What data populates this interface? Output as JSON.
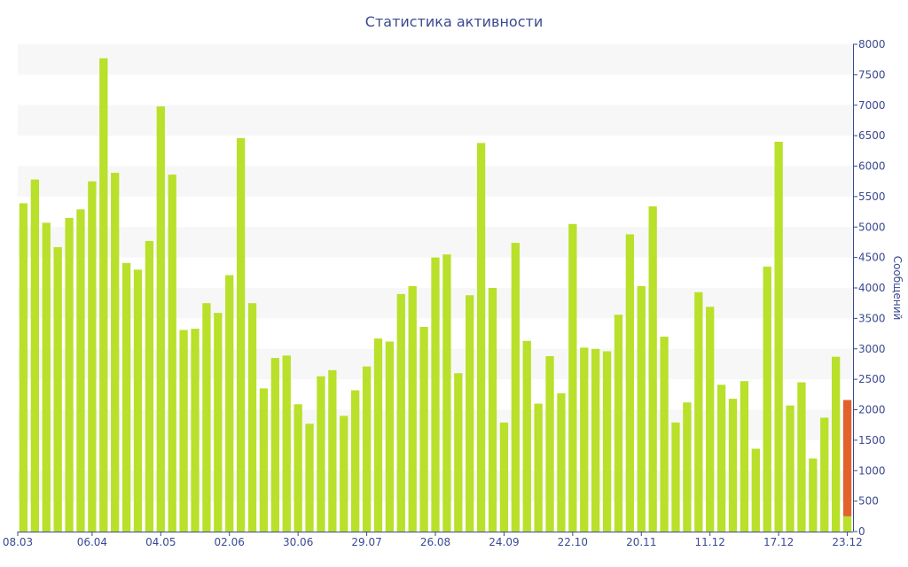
{
  "chart_data": {
    "type": "bar",
    "title": "Статистика активности",
    "ylabel": "Сообщений",
    "ylim": [
      0,
      8000
    ],
    "ytick_step": 500,
    "grid": "horizontal alternating bands",
    "x_tick_labels": [
      "08.03",
      "06.04",
      "04.05",
      "02.06",
      "30.06",
      "29.07",
      "26.08",
      "24.09",
      "22.10",
      "20.11",
      "11.12",
      "17.12",
      "23.12"
    ],
    "x_tick_positions": [
      0,
      6.5,
      12.5,
      18.5,
      24.5,
      30.5,
      36.5,
      42.5,
      48.5,
      54.5,
      60.5,
      66.5,
      72.5
    ],
    "values": [
      5390,
      5780,
      5070,
      4670,
      5150,
      5290,
      5750,
      7770,
      5890,
      4410,
      4300,
      4770,
      6980,
      5860,
      3310,
      3330,
      3750,
      3590,
      4210,
      6460,
      3750,
      2350,
      2850,
      2890,
      2090,
      1770,
      2550,
      2650,
      1900,
      2320,
      2710,
      3170,
      3120,
      3900,
      4030,
      3360,
      4500,
      4550,
      2600,
      3880,
      6380,
      4000,
      1790,
      4740,
      3130,
      2100,
      2880,
      2270,
      5050,
      3020,
      3000,
      2960,
      3560,
      4880,
      4030,
      5340,
      3200,
      1790,
      2120,
      3930,
      3690,
      2410,
      2180,
      2470,
      1360,
      4350,
      6400,
      2070,
      2450,
      1200,
      1870,
      2870,
      250
    ],
    "current_segment": {
      "base": 250,
      "top": 2160
    },
    "colors": {
      "bar": "#b9e02a",
      "current": "#e2622c",
      "text": "#3b4a8f",
      "band": "#f7f7f7",
      "axis": "#3b4a8f"
    }
  }
}
